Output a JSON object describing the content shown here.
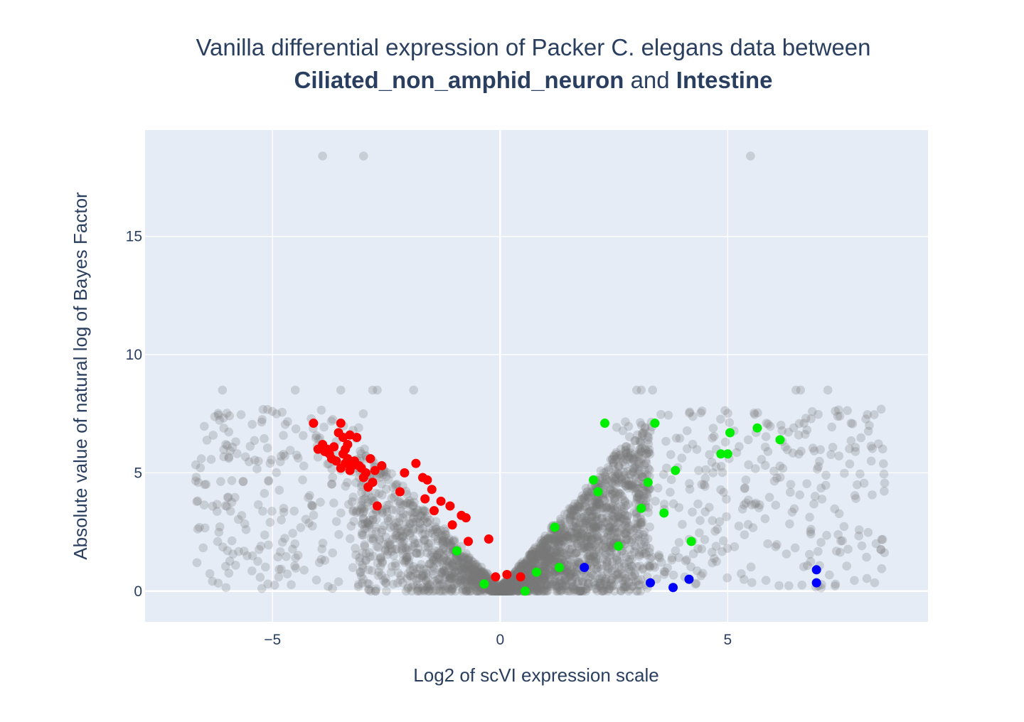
{
  "chart_data": {
    "type": "scatter",
    "title": {
      "line1": "Vanilla differential expression of Packer C. elegans data between",
      "group1": "Ciliated_non_amphid_neuron",
      "connector": "and",
      "group2": "Intestine"
    },
    "xlabel": "Log2 of scVI expression scale",
    "ylabel": "Absolute value of natural log of Bayes Factor",
    "xlim": [
      -7.8,
      9.4
    ],
    "ylim": [
      -1.3,
      19.5
    ],
    "x_ticks": [
      {
        "v": -5,
        "label": "−5"
      },
      {
        "v": 0,
        "label": "0"
      },
      {
        "v": 5,
        "label": "5"
      }
    ],
    "y_ticks": [
      {
        "v": 0,
        "label": "0"
      },
      {
        "v": 5,
        "label": "5"
      },
      {
        "v": 10,
        "label": "10"
      },
      {
        "v": 15,
        "label": "15"
      }
    ],
    "grid": true,
    "colors": {
      "background": "#e5ecf6",
      "grid": "#ffffff",
      "gray": "#777777",
      "red": "#ff0000",
      "green": "#00ee00",
      "blue": "#0000ff"
    },
    "series": [
      {
        "color": "red",
        "x": [
          -4.1,
          -4.0,
          -3.9,
          -3.85,
          -3.8,
          -3.75,
          -3.7,
          -3.65,
          -3.6,
          -3.55,
          -3.5,
          -3.5,
          -3.45,
          -3.45,
          -3.4,
          -3.4,
          -3.35,
          -3.35,
          -3.3,
          -3.3,
          -3.25,
          -3.2,
          -3.15,
          -3.1,
          -3.05,
          -3.0,
          -2.95,
          -2.9,
          -2.85,
          -2.8,
          -2.75,
          -2.7,
          -2.6,
          -2.2,
          -2.1,
          -1.85,
          -1.7,
          -1.65,
          -1.6,
          -1.5,
          -1.45,
          -1.3,
          -1.1,
          -1.05,
          -0.85,
          -0.75,
          -0.7,
          -0.25,
          -0.1,
          0.15,
          0.45
        ],
        "y": [
          7.1,
          6.0,
          6.2,
          5.9,
          6.0,
          5.8,
          5.6,
          6.1,
          5.5,
          6.7,
          7.1,
          5.2,
          6.5,
          5.8,
          6.0,
          5.4,
          6.2,
          5.6,
          6.6,
          5.1,
          5.3,
          5.5,
          6.5,
          5.3,
          5.2,
          4.8,
          5.0,
          4.4,
          5.6,
          4.6,
          5.1,
          3.6,
          5.3,
          4.2,
          5.0,
          5.4,
          4.8,
          3.9,
          4.7,
          4.3,
          3.4,
          3.8,
          3.6,
          2.8,
          3.2,
          3.1,
          2.1,
          2.2,
          0.6,
          0.7,
          0.6
        ]
      },
      {
        "color": "green",
        "x": [
          -0.95,
          -0.35,
          0.55,
          0.8,
          1.2,
          1.3,
          2.05,
          2.15,
          2.3,
          2.6,
          3.1,
          3.25,
          3.4,
          3.6,
          3.85,
          4.2,
          4.85,
          5.0,
          5.05,
          5.65,
          6.15
        ],
        "y": [
          1.7,
          0.3,
          0.0,
          0.8,
          2.7,
          1.0,
          4.7,
          4.2,
          7.1,
          1.9,
          3.5,
          4.6,
          7.1,
          3.3,
          5.1,
          2.1,
          5.8,
          5.8,
          6.7,
          6.9,
          6.4
        ]
      },
      {
        "color": "blue",
        "x": [
          1.85,
          3.3,
          3.8,
          4.15,
          6.95,
          6.95
        ],
        "y": [
          1.0,
          0.35,
          0.15,
          0.5,
          0.9,
          0.35
        ]
      }
    ]
  }
}
